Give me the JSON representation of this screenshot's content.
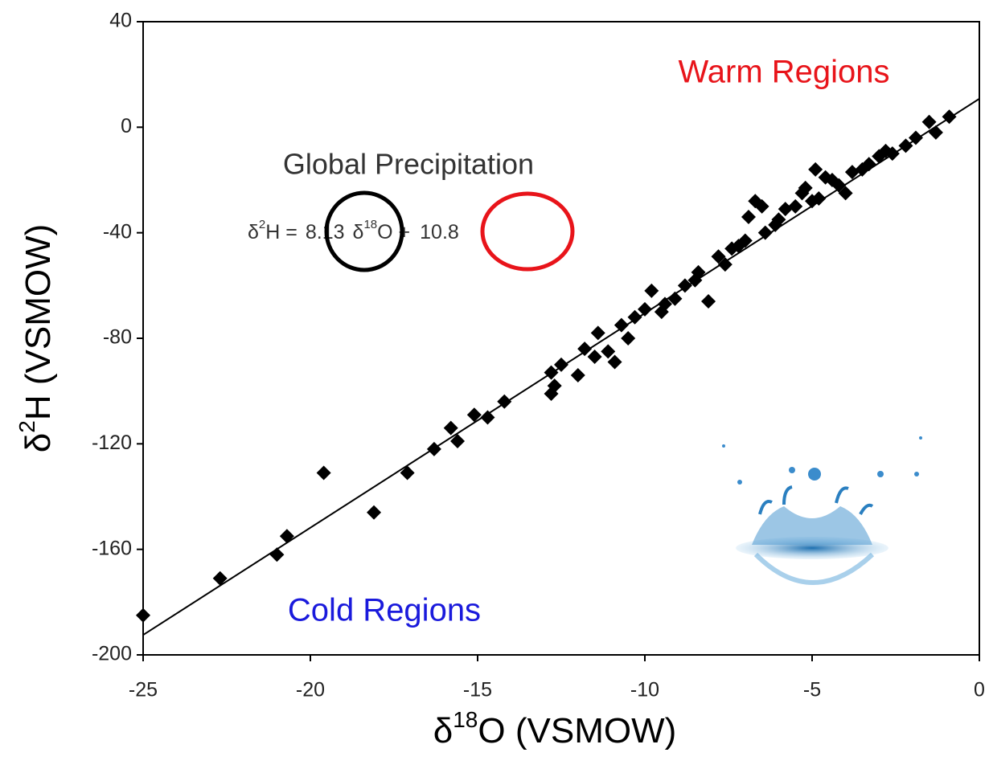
{
  "chart_data": {
    "type": "scatter",
    "x": [
      -25,
      -22.7,
      -21,
      -20.7,
      -19.6,
      -18.1,
      -17.1,
      -16.3,
      -15.8,
      -15.6,
      -15.1,
      -14.7,
      -14.2,
      -12.8,
      -12.8,
      -12.7,
      -12.5,
      -12.0,
      -11.5,
      -11.4,
      -11.1,
      -10.9,
      -10.7,
      -10.3,
      -10.0,
      -9.8,
      -9.4,
      -9.1,
      -8.8,
      -8.4,
      -8.1,
      -7.8,
      -7.4,
      -7.0,
      -6.9,
      -6.7,
      -6.4,
      -6.1,
      -5.8,
      -5.5,
      -5.2,
      -4.9,
      -4.8,
      -4.4,
      -4.0,
      -3.8,
      -3.3,
      -3.0,
      -2.6,
      -2.2,
      -1.9,
      -1.5,
      -1.3,
      -0.9,
      -9.5,
      -8.5,
      -7.2,
      -6.0,
      -5.0,
      -4.2,
      -3.5,
      -2.8,
      -7.6,
      -10.5,
      -11.8,
      -6.5,
      -5.3,
      -4.6
    ],
    "values": [
      -185,
      -171,
      -162,
      -155,
      -131,
      -146,
      -131,
      -122,
      -114,
      -119,
      -109,
      -110,
      -104,
      -93,
      -101,
      -98,
      -90,
      -94,
      -87,
      -78,
      -85,
      -89,
      -75,
      -72,
      -69,
      -62,
      -67,
      -65,
      -60,
      -55,
      -66,
      -49,
      -46,
      -43,
      -34,
      -28,
      -40,
      -37,
      -31,
      -30,
      -23,
      -16,
      -27,
      -20,
      -25,
      -17,
      -14,
      -11,
      -10,
      -7,
      -4,
      2,
      -2,
      4,
      -70,
      -58,
      -45,
      -35,
      -28,
      -22,
      -16,
      -9,
      -52,
      -80,
      -84,
      -30,
      -25,
      -19
    ],
    "color": "#000000",
    "xlim": [
      -25,
      0
    ],
    "ylim": [
      -200,
      40
    ],
    "xticks": [
      -25,
      -20,
      -15,
      -10,
      -5,
      0
    ],
    "yticks": [
      -200,
      -160,
      -120,
      -80,
      -40,
      0,
      40
    ],
    "x_label": {
      "symbol": "δ",
      "sup": "18",
      "rest": "O (VSMOW)"
    },
    "y_label": {
      "symbol": "δ",
      "sup": "2",
      "rest": "H (VSMOW)"
    },
    "annotation_title": "Global Precipitation",
    "equation": {
      "lhs_symbol": "δ",
      "lhs_sup": "2",
      "lhs_rest": "H =",
      "slope": 8.13,
      "rhs_symbol": "δ",
      "rhs_sup": "18",
      "rhs_rest": "O +",
      "intercept": 10.8
    },
    "warm_label": "Warm Regions",
    "cold_label": "Cold Regions"
  }
}
